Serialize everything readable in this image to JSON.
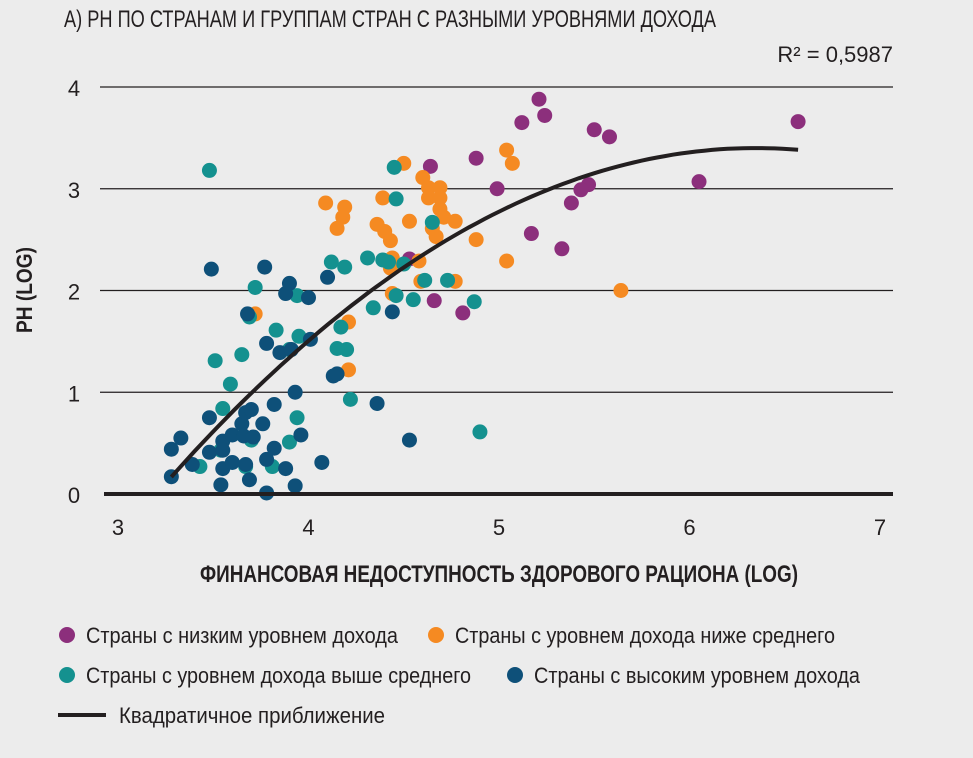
{
  "chart_data": {
    "type": "scatter",
    "title": "А) PH ПО СТРАНАМ И ГРУППАМ СТРАН С РАЗНЫМИ УРОВНЯМИ ДОХОДА",
    "annotation": "R² = 0,5987",
    "xlabel": "ФИНАНСОВАЯ НЕДОСТУПНОСТЬ ЗДОРОВОГО РАЦИОНА (LOG)",
    "ylabel": "PH (LOG)",
    "xlim": [
      3,
      7
    ],
    "ylim": [
      0,
      4
    ],
    "xticks": [
      "3",
      "4",
      "5",
      "6",
      "7"
    ],
    "yticks": [
      "0",
      "1",
      "2",
      "3",
      "4"
    ],
    "grid": "horizontal",
    "legend_placement": "bottom",
    "series": [
      {
        "name": "Страны с низким уровнем дохода",
        "color": "#8c2f7c",
        "points": [
          [
            5.21,
            3.88
          ],
          [
            5.24,
            3.72
          ],
          [
            5.12,
            3.65
          ],
          [
            5.5,
            3.58
          ],
          [
            5.58,
            3.51
          ],
          [
            6.57,
            3.66
          ],
          [
            4.88,
            3.3
          ],
          [
            4.64,
            3.22
          ],
          [
            4.99,
            3.0
          ],
          [
            6.05,
            3.07
          ],
          [
            5.47,
            3.04
          ],
          [
            5.43,
            2.99
          ],
          [
            5.38,
            2.86
          ],
          [
            5.17,
            2.56
          ],
          [
            5.33,
            2.41
          ],
          [
            4.53,
            2.31
          ],
          [
            4.66,
            1.9
          ],
          [
            4.81,
            1.78
          ]
        ]
      },
      {
        "name": "Страны с уровнем дохода ниже среднего",
        "color": "#f58a22",
        "points": [
          [
            4.5,
            3.25
          ],
          [
            5.04,
            3.38
          ],
          [
            5.07,
            3.25
          ],
          [
            4.09,
            2.86
          ],
          [
            4.19,
            2.82
          ],
          [
            4.18,
            2.72
          ],
          [
            4.15,
            2.61
          ],
          [
            4.39,
            2.91
          ],
          [
            4.36,
            2.65
          ],
          [
            4.4,
            2.58
          ],
          [
            4.6,
            3.11
          ],
          [
            4.63,
            3.01
          ],
          [
            4.69,
            3.01
          ],
          [
            4.63,
            2.91
          ],
          [
            4.53,
            2.68
          ],
          [
            4.69,
            2.91
          ],
          [
            4.69,
            2.8
          ],
          [
            4.71,
            2.72
          ],
          [
            4.77,
            2.68
          ],
          [
            4.65,
            2.61
          ],
          [
            4.67,
            2.53
          ],
          [
            4.88,
            2.5
          ],
          [
            4.43,
            2.49
          ],
          [
            4.44,
            2.32
          ],
          [
            4.58,
            2.29
          ],
          [
            5.04,
            2.29
          ],
          [
            4.59,
            2.09
          ],
          [
            4.77,
            2.09
          ],
          [
            4.44,
            1.97
          ],
          [
            5.64,
            2.0
          ],
          [
            4.21,
            1.69
          ],
          [
            3.72,
            1.77
          ],
          [
            4.21,
            1.22
          ],
          [
            4.43,
            2.22
          ]
        ]
      },
      {
        "name": "Страны с уровнем дохода выше среднего",
        "color": "#14918f",
        "points": [
          [
            3.48,
            3.18
          ],
          [
            4.45,
            3.21
          ],
          [
            4.46,
            2.9
          ],
          [
            4.65,
            2.67
          ],
          [
            4.31,
            2.32
          ],
          [
            4.12,
            2.28
          ],
          [
            4.19,
            2.23
          ],
          [
            4.39,
            2.3
          ],
          [
            4.42,
            2.28
          ],
          [
            4.5,
            2.26
          ],
          [
            4.61,
            2.1
          ],
          [
            4.73,
            2.1
          ],
          [
            4.34,
            1.83
          ],
          [
            4.55,
            1.91
          ],
          [
            4.87,
            1.89
          ],
          [
            4.46,
            1.95
          ],
          [
            3.94,
            1.95
          ],
          [
            3.72,
            2.03
          ],
          [
            3.69,
            1.74
          ],
          [
            3.83,
            1.61
          ],
          [
            3.95,
            1.55
          ],
          [
            4.17,
            1.64
          ],
          [
            4.2,
            1.42
          ],
          [
            4.15,
            1.43
          ],
          [
            3.9,
            1.42
          ],
          [
            3.51,
            1.31
          ],
          [
            3.65,
            1.37
          ],
          [
            3.59,
            1.08
          ],
          [
            4.22,
            0.93
          ],
          [
            3.94,
            0.75
          ],
          [
            3.55,
            0.84
          ],
          [
            3.9,
            0.51
          ],
          [
            3.81,
            0.27
          ],
          [
            3.67,
            0.27
          ],
          [
            3.43,
            0.27
          ],
          [
            4.9,
            0.61
          ],
          [
            3.7,
            0.53
          ],
          [
            3.54,
            0.43
          ]
        ]
      },
      {
        "name": "Страны с высоким уровнем дохода",
        "color": "#0e5079",
        "points": [
          [
            3.49,
            2.21
          ],
          [
            3.77,
            2.23
          ],
          [
            3.9,
            2.07
          ],
          [
            3.88,
            1.97
          ],
          [
            4.0,
            1.93
          ],
          [
            4.1,
            2.13
          ],
          [
            3.68,
            1.77
          ],
          [
            3.78,
            1.48
          ],
          [
            3.85,
            1.39
          ],
          [
            3.91,
            1.42
          ],
          [
            4.01,
            1.52
          ],
          [
            4.44,
            1.79
          ],
          [
            4.13,
            1.16
          ],
          [
            4.15,
            1.18
          ],
          [
            3.93,
            1.0
          ],
          [
            3.82,
            0.88
          ],
          [
            4.36,
            0.89
          ],
          [
            4.53,
            0.53
          ],
          [
            3.28,
            0.44
          ],
          [
            3.33,
            0.55
          ],
          [
            3.39,
            0.29
          ],
          [
            3.28,
            0.17
          ],
          [
            3.48,
            0.41
          ],
          [
            3.48,
            0.75
          ],
          [
            3.55,
            0.52
          ],
          [
            3.55,
            0.43
          ],
          [
            3.6,
            0.58
          ],
          [
            3.65,
            0.69
          ],
          [
            3.67,
            0.8
          ],
          [
            3.7,
            0.83
          ],
          [
            3.66,
            0.57
          ],
          [
            3.71,
            0.56
          ],
          [
            3.76,
            0.69
          ],
          [
            3.78,
            0.34
          ],
          [
            3.82,
            0.45
          ],
          [
            3.88,
            0.25
          ],
          [
            3.96,
            0.58
          ],
          [
            3.93,
            0.08
          ],
          [
            3.67,
            0.29
          ],
          [
            3.55,
            0.25
          ],
          [
            3.69,
            0.14
          ],
          [
            3.54,
            0.09
          ],
          [
            3.78,
            0.01
          ],
          [
            4.07,
            0.31
          ],
          [
            3.6,
            0.31
          ]
        ]
      }
    ],
    "fit": {
      "name": "Квадратичное приближение",
      "type": "quadratic",
      "coefficients": [
        -10.43,
        4.356,
        -0.343
      ],
      "x_range": [
        3.28,
        6.57
      ],
      "color": "#231f20"
    }
  }
}
